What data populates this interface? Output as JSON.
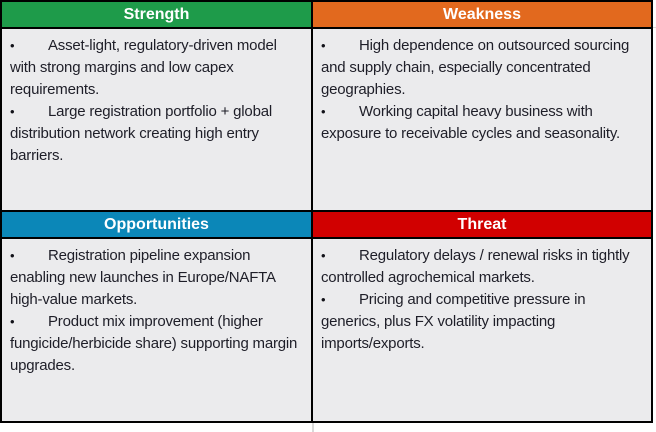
{
  "table": {
    "bullet_char": "•",
    "colors": {
      "strength_header": "#1e9b4a",
      "weakness_header": "#e2691e",
      "opportunities_header": "#0b87b8",
      "threat_header": "#d10000",
      "cell_background": "#ebebed",
      "border": "#000000",
      "header_text": "#ffffff",
      "body_text": "#1e1e28"
    },
    "quadrants": [
      {
        "key": "strength",
        "title": "Strength",
        "items": [
          "Asset-light, regulatory-driven model with strong margins and low capex requirements.",
          "Large registration portfolio + global distribution network creating high entry barriers."
        ]
      },
      {
        "key": "weakness",
        "title": "Weakness",
        "items": [
          "High dependence on outsourced sourcing and supply chain, especially concentrated geographies.",
          "Working capital heavy business with exposure to receivable cycles and seasonality."
        ]
      },
      {
        "key": "opportunities",
        "title": "Opportunities",
        "items": [
          "Registration pipeline expansion enabling new launches in Europe/NAFTA high-value markets.",
          "Product mix improvement (higher fungicide/herbicide share) supporting margin upgrades."
        ]
      },
      {
        "key": "threat",
        "title": "Threat",
        "items": [
          "Regulatory delays / renewal risks in tightly controlled agrochemical markets.",
          "Pricing and competitive pressure in generics, plus FX volatility impacting imports/exports."
        ]
      }
    ]
  }
}
